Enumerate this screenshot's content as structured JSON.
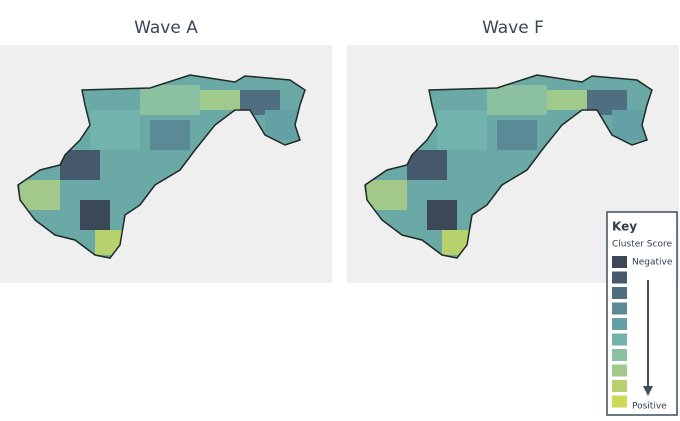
{
  "maps": [
    {
      "title": "Wave A"
    },
    {
      "title": "Wave F"
    }
  ],
  "key": {
    "title": "Key",
    "subtitle": "Cluster Score",
    "low_label": "Negative",
    "high_label": "Positive",
    "colors": [
      "#3a4858",
      "#45596a",
      "#4f6f80",
      "#5a8a96",
      "#64a1a6",
      "#72b3ad",
      "#8bc0a0",
      "#a2c98a",
      "#b7d26d",
      "#cbdb55"
    ]
  }
}
